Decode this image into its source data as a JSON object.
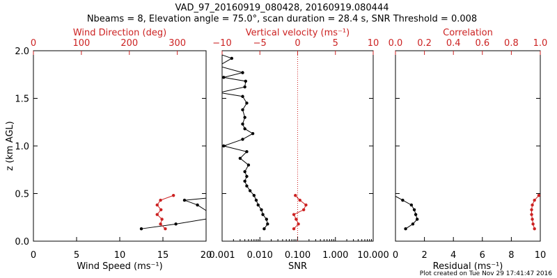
{
  "header": {
    "title": "VAD_97_20160919_080428, 20160919.080444",
    "subtitle": "Nbeams = 8, Elevation angle = 75.0°, scan duration = 28.4 s, SNR Threshold = 0.008"
  },
  "footer": {
    "created": "Plot created on Tue Nov 29 17:41:47 2016"
  },
  "colors": {
    "primary": "#000000",
    "secondary": "#cc2222"
  },
  "chart_data": [
    {
      "type": "line",
      "panel": "wind",
      "xlabel": "Wind Speed (ms⁻¹)",
      "xlabel_top": "Wind Direction (deg)",
      "ylabel": "z (km AGL)",
      "xlim": [
        0,
        20
      ],
      "xlim_top": [
        0,
        360
      ],
      "ylim": [
        0,
        2
      ],
      "x_ticks": [
        "0",
        "5",
        "10",
        "15",
        "20"
      ],
      "x_ticks_top": [
        "0",
        "100",
        "200",
        "300"
      ],
      "y_ticks": [
        "0.0",
        "0.5",
        "1.0",
        "1.5",
        "2.0"
      ],
      "series": [
        {
          "axis": "bottom",
          "color": "#000000",
          "points": [
            [
              12.5,
              0.13
            ],
            [
              16.5,
              0.18
            ],
            [
              20.5,
              0.24
            ],
            [
              20.2,
              0.31
            ],
            [
              19.0,
              0.38
            ],
            [
              17.5,
              0.43
            ],
            [
              21.0,
              0.46
            ]
          ]
        },
        {
          "axis": "top",
          "color": "#cc2222",
          "points": [
            [
              275,
              0.13
            ],
            [
              265,
              0.18
            ],
            [
              268,
              0.23
            ],
            [
              258,
              0.28
            ],
            [
              266,
              0.33
            ],
            [
              258,
              0.38
            ],
            [
              265,
              0.43
            ],
            [
              292,
              0.48
            ]
          ]
        }
      ]
    },
    {
      "type": "line",
      "panel": "snr",
      "xlabel": "SNR",
      "xlabel_top": "Vertical velocity (ms⁻¹)",
      "xscale": "log",
      "xlim": [
        0.001,
        10
      ],
      "xlim_top": [
        -10,
        10
      ],
      "ylim": [
        0,
        2
      ],
      "x_ticks": [
        "0.001",
        "0.010",
        "0.100",
        "1.000",
        "10.000"
      ],
      "x_ticks_top": [
        "−10",
        "−5",
        "0",
        "5",
        "10"
      ],
      "reference_line_top": 0,
      "series": [
        {
          "axis": "bottom",
          "color": "#000000",
          "points": [
            [
              0.013,
              0.13
            ],
            [
              0.016,
              0.18
            ],
            [
              0.015,
              0.23
            ],
            [
              0.012,
              0.28
            ],
            [
              0.011,
              0.33
            ],
            [
              0.009,
              0.38
            ],
            [
              0.008,
              0.43
            ],
            [
              0.007,
              0.48
            ],
            [
              0.0055,
              0.53
            ],
            [
              0.0045,
              0.58
            ],
            [
              0.004,
              0.63
            ],
            [
              0.0045,
              0.68
            ],
            [
              0.004,
              0.73
            ],
            [
              0.005,
              0.8
            ],
            [
              0.003,
              0.87
            ],
            [
              0.0045,
              0.94
            ],
            [
              0.0011,
              1.0
            ],
            [
              0.0035,
              1.07
            ],
            [
              0.0065,
              1.13
            ],
            [
              0.004,
              1.18
            ],
            [
              0.0035,
              1.23
            ],
            [
              0.004,
              1.3
            ],
            [
              0.0035,
              1.38
            ],
            [
              0.0045,
              1.45
            ],
            [
              0.0035,
              1.52
            ],
            [
              0.00085,
              1.56
            ],
            [
              0.004,
              1.62
            ],
            [
              0.0042,
              1.68
            ],
            [
              0.0011,
              1.72
            ],
            [
              0.0035,
              1.77
            ],
            [
              0.0008,
              1.84
            ],
            [
              0.0018,
              1.92
            ],
            [
              0.0008,
              1.97
            ]
          ]
        },
        {
          "axis": "top",
          "color": "#cc2222",
          "points": [
            [
              -0.5,
              0.13
            ],
            [
              0.1,
              0.18
            ],
            [
              -0.2,
              0.23
            ],
            [
              -0.5,
              0.28
            ],
            [
              0.8,
              0.33
            ],
            [
              1.1,
              0.38
            ],
            [
              0.3,
              0.43
            ],
            [
              -0.3,
              0.48
            ]
          ]
        }
      ]
    },
    {
      "type": "line",
      "panel": "residual",
      "xlabel": "Residual (ms⁻¹)",
      "xlabel_top": "Correlation",
      "xlim": [
        0,
        10
      ],
      "xlim_top": [
        0,
        1
      ],
      "ylim": [
        0,
        2
      ],
      "x_ticks": [
        "0",
        "2",
        "4",
        "6",
        "8",
        "10"
      ],
      "x_ticks_top": [
        "0.0",
        "0.2",
        "0.4",
        "0.6",
        "0.8",
        "1.0"
      ],
      "series": [
        {
          "axis": "bottom",
          "color": "#000000",
          "points": [
            [
              0.7,
              0.13
            ],
            [
              1.2,
              0.18
            ],
            [
              1.5,
              0.23
            ],
            [
              1.4,
              0.28
            ],
            [
              1.3,
              0.33
            ],
            [
              1.1,
              0.38
            ],
            [
              0.5,
              0.43
            ],
            [
              -0.1,
              0.48
            ]
          ]
        },
        {
          "axis": "top",
          "color": "#cc2222",
          "points": [
            [
              0.96,
              0.13
            ],
            [
              0.95,
              0.18
            ],
            [
              0.945,
              0.23
            ],
            [
              0.94,
              0.28
            ],
            [
              0.94,
              0.33
            ],
            [
              0.945,
              0.38
            ],
            [
              0.96,
              0.43
            ],
            [
              0.99,
              0.48
            ]
          ]
        }
      ]
    }
  ]
}
